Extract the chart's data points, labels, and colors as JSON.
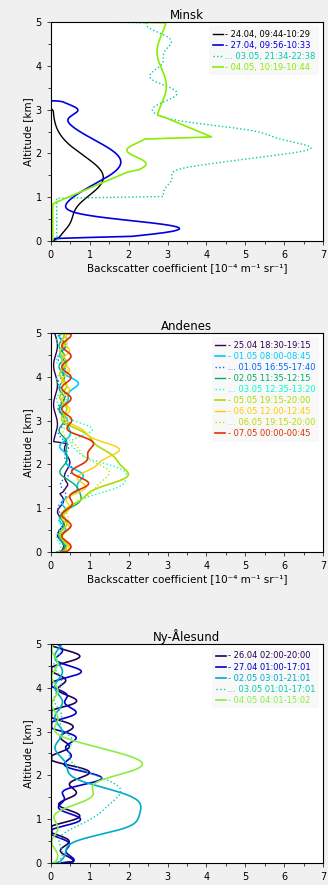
{
  "panels": [
    {
      "title": "Minsk",
      "xlabel": "Backscatter coefficient [10⁻⁴ m⁻¹ sr⁻¹]",
      "ylabel": "Altitude [km]",
      "xlim": [
        0,
        7
      ],
      "ylim": [
        0,
        5
      ],
      "xticks": [
        0,
        1,
        2,
        3,
        4,
        5,
        6,
        7
      ],
      "yticks": [
        0,
        1,
        2,
        3,
        4,
        5
      ],
      "series": [
        {
          "label": "- 24.04, 09:44-10:29",
          "color": "#000000",
          "linestyle": "solid",
          "lw": 1.0
        },
        {
          "label": "- 27.04, 09:56-10:33",
          "color": "#0000dd",
          "linestyle": "solid",
          "lw": 1.2
        },
        {
          "label": "... 03.05, 21:34-22:38",
          "color": "#00ccaa",
          "linestyle": "dotted",
          "lw": 1.0
        },
        {
          "label": "- 04.05, 10:19-10:44",
          "color": "#88ee00",
          "linestyle": "solid",
          "lw": 1.2
        }
      ]
    },
    {
      "title": "Andenes",
      "xlabel": "Backscatter coefficient [10⁻⁴ m⁻¹ sr⁻¹]",
      "ylabel": "Altitude [km]",
      "xlim": [
        0,
        7
      ],
      "ylim": [
        0,
        5
      ],
      "xticks": [
        0,
        1,
        2,
        3,
        4,
        5,
        6,
        7
      ],
      "yticks": [
        0,
        1,
        2,
        3,
        4,
        5
      ],
      "series": [
        {
          "label": "- 25.04 18:30-19:15",
          "color": "#330055",
          "linestyle": "solid",
          "lw": 1.0
        },
        {
          "label": "- 01.05 08:00-08:45",
          "color": "#00ccff",
          "linestyle": "solid",
          "lw": 1.2
        },
        {
          "label": "... 01.05 16:55-17:40",
          "color": "#0066ff",
          "linestyle": "dotted",
          "lw": 1.0
        },
        {
          "label": "- 02.05 11:35-12:15",
          "color": "#00aa66",
          "linestyle": "solid",
          "lw": 1.0
        },
        {
          "label": "... 03.05 12:35-13:20",
          "color": "#00ffcc",
          "linestyle": "dotted",
          "lw": 1.0
        },
        {
          "label": "- 05.05 19:15-20:00",
          "color": "#aadd00",
          "linestyle": "solid",
          "lw": 1.2
        },
        {
          "label": "- 06.05 12:00-12:45",
          "color": "#ffcc00",
          "linestyle": "solid",
          "lw": 1.0
        },
        {
          "label": "... 06.05 19:15-20:00",
          "color": "#bbdd00",
          "linestyle": "dotted",
          "lw": 1.0
        },
        {
          "label": "- 07.05 00:00-00:45",
          "color": "#dd3300",
          "linestyle": "solid",
          "lw": 1.2
        }
      ]
    },
    {
      "title": "Ny-Ålesund",
      "xlabel": "Backscatter coefficient [10⁻⁴ m⁻¹ sr⁻¹]",
      "ylabel": "Altitude [km]",
      "xlim": [
        0,
        7
      ],
      "ylim": [
        0,
        5
      ],
      "xticks": [
        0,
        1,
        2,
        3,
        4,
        5,
        6,
        7
      ],
      "yticks": [
        0,
        1,
        2,
        3,
        4,
        5
      ],
      "series": [
        {
          "label": "- 26.04 02:00-20:00",
          "color": "#220055",
          "linestyle": "solid",
          "lw": 1.2
        },
        {
          "label": "- 27.04 01:00-17:01",
          "color": "#0000cc",
          "linestyle": "solid",
          "lw": 1.2
        },
        {
          "label": "- 02.05 03:01-21:01",
          "color": "#00aacc",
          "linestyle": "solid",
          "lw": 1.2
        },
        {
          "label": "... 03.05 01:01-17:01",
          "color": "#00ccaa",
          "linestyle": "dotted",
          "lw": 1.0
        },
        {
          "label": "- 04.05 04:01-15:02",
          "color": "#88ee44",
          "linestyle": "solid",
          "lw": 1.2
        }
      ]
    }
  ],
  "bg_color": "#f0f0f0",
  "plot_bg": "#ffffff",
  "legend_fontsize": 6.0,
  "tick_fontsize": 7.0,
  "label_fontsize": 7.5,
  "title_fontsize": 8.5
}
